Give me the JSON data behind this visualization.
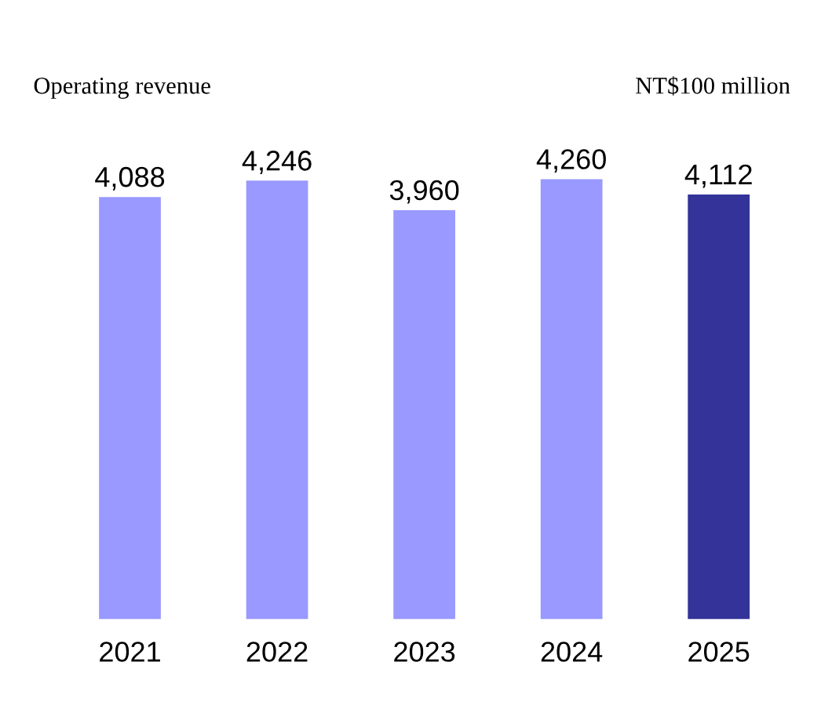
{
  "chart_data": {
    "type": "bar",
    "title": "Operating revenue",
    "ylabel": "NT$100 million",
    "categories": [
      "2021",
      "2022",
      "2023",
      "2024",
      "2025"
    ],
    "values": [
      4088,
      4246,
      3960,
      4260,
      4112
    ],
    "colors": [
      "#9999ff",
      "#9999ff",
      "#9999ff",
      "#9999ff",
      "#333399"
    ],
    "value_labels": [
      "4,088",
      "4,246",
      "3,960",
      "4,260",
      "4,112"
    ],
    "grid": false,
    "legend": false
  }
}
